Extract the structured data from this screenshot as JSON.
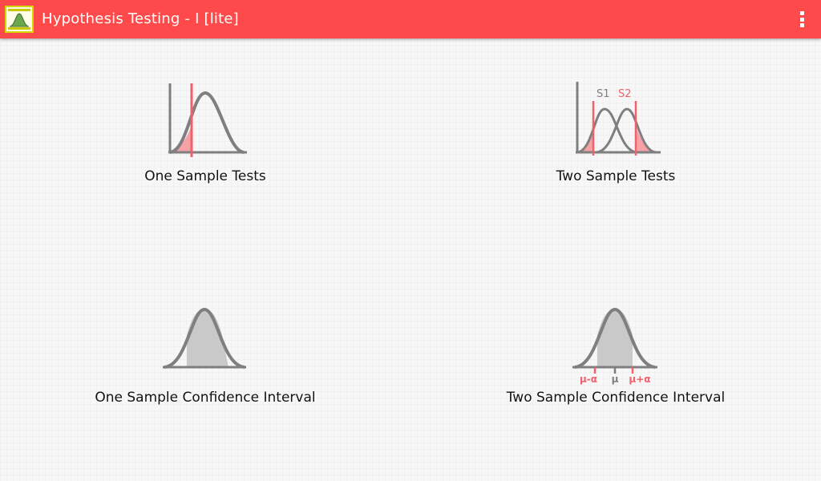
{
  "app": {
    "title": "Hypothesis Testing - I [lite]",
    "accent_color": "#fe4a4a",
    "icons": {
      "app_logo": "bell-curve-app-icon",
      "menu": "overflow-menu-icon"
    }
  },
  "menu": {
    "items": [
      {
        "label": "One Sample Tests",
        "icon": "one-sample-test-icon"
      },
      {
        "label": "Two Sample Tests",
        "icon": "two-sample-test-icon",
        "series_labels": [
          "S1",
          "S2"
        ]
      },
      {
        "label": "One Sample Confidence Interval",
        "icon": "one-sample-ci-icon"
      },
      {
        "label": "Two Sample Confidence Interval",
        "icon": "two-sample-ci-icon",
        "axis_labels": [
          "μ-α",
          "μ",
          "μ+α"
        ]
      }
    ]
  },
  "colors": {
    "curve": "#7f7f7f",
    "highlight": "#f0616d",
    "highlight_fill": "#f7a0a6",
    "area_fill": "#c9c9c9"
  }
}
